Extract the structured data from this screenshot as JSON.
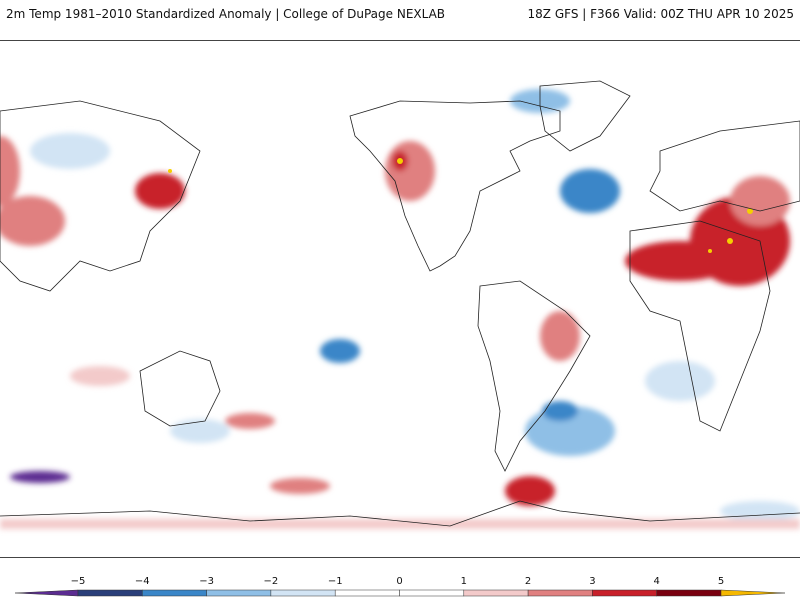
{
  "header": {
    "left": "2m Temp 1981–2010 Standardized Anomaly | College of DuPage NEXLAB",
    "right": "18Z GFS | F366 Valid: 00Z THU APR 10 2025"
  },
  "legend": {
    "ticks": [
      "−5",
      "−4",
      "−3",
      "−2",
      "−1",
      "0",
      "1",
      "2",
      "3",
      "4",
      "5"
    ],
    "colors": [
      "#5b2c91",
      "#2a3f7a",
      "#3a86c8",
      "#8fbfe6",
      "#d2e4f4",
      "#ffffff",
      "#ffffff",
      "#f3caca",
      "#e08080",
      "#c8202a",
      "#7a0010",
      "#f5b800"
    ]
  },
  "map": {
    "background": "#ffffff",
    "coast_color": "#222222",
    "land_names": [
      "north-america",
      "south-america",
      "greenland",
      "africa",
      "europe",
      "asia",
      "australia",
      "antarctica"
    ]
  }
}
